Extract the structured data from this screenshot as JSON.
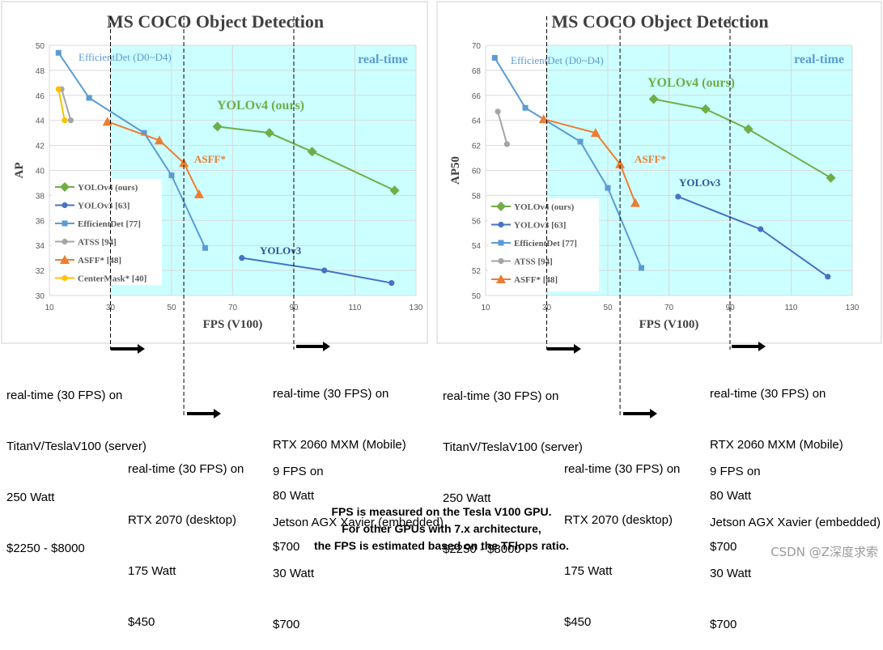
{
  "chart_data": [
    {
      "type": "line",
      "title": "MS COCO Object Detection",
      "xlabel": "FPS (V100)",
      "ylabel": "AP",
      "xlim": [
        10,
        130
      ],
      "ylim": [
        30,
        50
      ],
      "xticks": [
        10,
        30,
        50,
        70,
        90,
        110,
        130
      ],
      "yticks": [
        30,
        32,
        34,
        36,
        38,
        40,
        42,
        44,
        46,
        48,
        50
      ],
      "grid": true,
      "legend_placement": "lower-left",
      "realtime_region": {
        "x_from": 30,
        "label": "real-time",
        "color": "#ccffff"
      },
      "dashed_lines_x": [
        30,
        54,
        90
      ],
      "series": [
        {
          "name": "YOLOv4 (ours)",
          "color": "#70ad47",
          "marker": "diamond",
          "x": [
            65,
            82,
            96,
            123
          ],
          "y": [
            43.5,
            43,
            41.5,
            38.4
          ]
        },
        {
          "name": "YOLOv3 [63]",
          "color": "#4472c4",
          "marker": "circle",
          "x": [
            73,
            100,
            122
          ],
          "y": [
            33,
            32,
            31
          ]
        },
        {
          "name": "EfficientDet [77]",
          "color": "#5b9bd5",
          "marker": "square",
          "x": [
            13,
            23,
            41,
            50,
            61
          ],
          "y": [
            49.4,
            45.8,
            43,
            39.6,
            33.8
          ]
        },
        {
          "name": "ATSS [94]",
          "color": "#a5a5a5",
          "marker": "circle",
          "x": [
            14,
            17
          ],
          "y": [
            46.5,
            44
          ]
        },
        {
          "name": "ASFF* [48]",
          "color": "#ed7d31",
          "marker": "triangle",
          "x": [
            29,
            46,
            54,
            59
          ],
          "y": [
            43.9,
            42.4,
            40.6,
            38.1
          ]
        },
        {
          "name": "CenterMask* [40]",
          "color": "#ffc000",
          "marker": "circle",
          "x": [
            13,
            15
          ],
          "y": [
            46.5,
            44
          ]
        }
      ],
      "annotations": [
        {
          "text": "EfficientDet (D0~D4)",
          "x": 11.5,
          "y": 48.3,
          "color": "#5b9bd5"
        },
        {
          "text": "YOLOv4 (ours)",
          "x": 62,
          "y": 44.6,
          "color": "#70ad47"
        },
        {
          "text": "ASFF*",
          "x": 56,
          "y": 41,
          "color": "#ed7d31"
        },
        {
          "text": "YOLOv3",
          "x": 74,
          "y": 33.8,
          "color": "#2f5597"
        }
      ]
    },
    {
      "type": "line",
      "title": "MS COCO Object Detection",
      "xlabel": "FPS (V100)",
      "ylabel": "AP50",
      "xlim": [
        10,
        130
      ],
      "ylim": [
        50,
        70
      ],
      "xticks": [
        10,
        30,
        50,
        70,
        90,
        110,
        130
      ],
      "yticks": [
        50,
        52,
        54,
        56,
        58,
        60,
        62,
        64,
        66,
        68,
        70
      ],
      "grid": true,
      "legend_placement": "lower-left",
      "realtime_region": {
        "x_from": 30,
        "label": "real-time",
        "color": "#ccffff"
      },
      "dashed_lines_x": [
        30,
        54,
        90
      ],
      "series": [
        {
          "name": "YOLOv4 (ours)",
          "color": "#70ad47",
          "marker": "diamond",
          "x": [
            65,
            82,
            96,
            123
          ],
          "y": [
            65.7,
            64.9,
            63.3,
            59.4
          ]
        },
        {
          "name": "YOLOv3 [63]",
          "color": "#4472c4",
          "marker": "circle",
          "x": [
            73,
            100,
            122
          ],
          "y": [
            57.9,
            55.3,
            51.5
          ]
        },
        {
          "name": "EfficientDet [77]",
          "color": "#5b9bd5",
          "marker": "square",
          "x": [
            13,
            23,
            41,
            50,
            61
          ],
          "y": [
            69,
            65,
            62.3,
            58.6,
            52.2
          ]
        },
        {
          "name": "ATSS [94]",
          "color": "#a5a5a5",
          "marker": "circle",
          "x": [
            14,
            17
          ],
          "y": [
            64.7,
            62.1
          ]
        },
        {
          "name": "ASFF* [48]",
          "color": "#ed7d31",
          "marker": "triangle",
          "x": [
            29,
            46,
            54,
            59
          ],
          "y": [
            64.1,
            63,
            60.5,
            57.4
          ]
        }
      ],
      "annotations": [
        {
          "text": "EfficientDet (D0~D4)",
          "x": 11.5,
          "y": 68.3,
          "color": "#5b9bd5"
        },
        {
          "text": "YOLOv4 (ours)",
          "x": 62,
          "y": 67.2,
          "color": "#70ad47"
        },
        {
          "text": "ASFF*",
          "x": 56,
          "y": 61,
          "color": "#ed7d31"
        },
        {
          "text": "YOLOv3",
          "x": 74,
          "y": 59.2,
          "color": "#2f5597"
        }
      ]
    }
  ],
  "notes": {
    "server": [
      "real-time (30 FPS) on",
      "TitanV/TeslaV100 (server)",
      "250 Watt",
      "$2250 - $8000"
    ],
    "desktop": [
      "real-time (30 FPS) on",
      "RTX 2070 (desktop)",
      "175 Watt",
      "$450"
    ],
    "mobile": [
      "real-time (30 FPS) on",
      "RTX 2060 MXM (Mobile)",
      "80 Watt",
      "$700"
    ],
    "embedded": [
      "9 FPS on",
      "Jetson AGX Xavier (embedded)",
      "30 Watt",
      "$700"
    ]
  },
  "footer": {
    "line1": "FPS is measured on the Tesla V100 GPU.",
    "line2": "For other GPUs with 7.x architecture,",
    "line3": "the FPS is estimated based on the TFlops ratio."
  },
  "watermark": "CSDN @Z深度求索"
}
